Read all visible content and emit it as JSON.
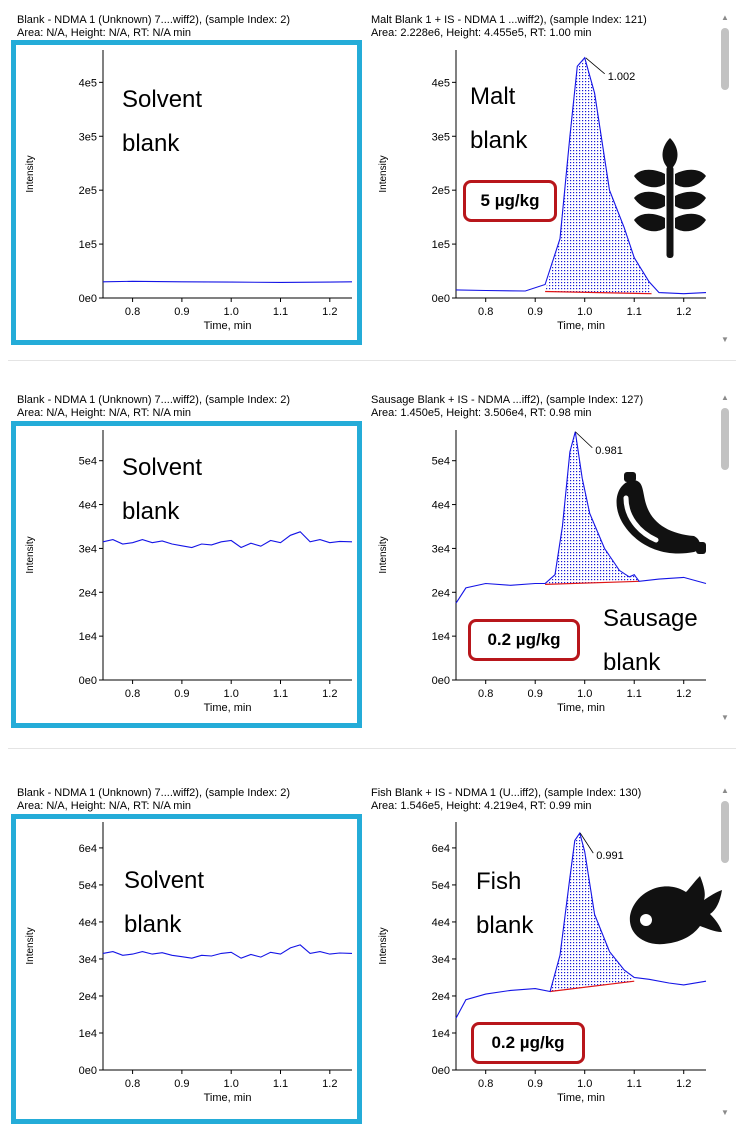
{
  "colors": {
    "trace": "#1414e6",
    "baseline": "#e01616",
    "frame": "#24acd8",
    "fill": "#1a1ad6",
    "badge": "#b8161b",
    "icon": "#111111"
  },
  "panels": [
    {
      "header1": "Blank - NDMA 1 (Unknown) 7....wiff2), (sample Index: 2)",
      "header2": "Area: N/A, Height: N/A, RT: N/A min",
      "annotation": "Solvent\nblank"
    },
    {
      "header1": "Malt Blank 1 + IS - NDMA 1 ...wiff2), (sample Index: 121)",
      "header2": "Area: 2.228e6, Height: 4.455e5, RT: 1.00 min",
      "annotation": "Malt\nblank",
      "concentration": "5 µg/kg",
      "icon": "wheat-icon"
    },
    {
      "header1": "Blank - NDMA 1 (Unknown) 7....wiff2), (sample Index: 2)",
      "header2": "Area: N/A, Height: N/A, RT: N/A min",
      "annotation": "Solvent\nblank"
    },
    {
      "header1": "Sausage Blank + IS - NDMA ...iff2), (sample Index: 127)",
      "header2": "Area: 1.450e5, Height: 3.506e4, RT: 0.98 min",
      "annotation": "Sausage\nblank",
      "concentration": "0.2 µg/kg",
      "icon": "sausage-icon"
    },
    {
      "header1": "Blank - NDMA 1 (Unknown) 7....wiff2), (sample Index: 2)",
      "header2": "Area: N/A, Height: N/A, RT: N/A min",
      "annotation": "Solvent\nblank"
    },
    {
      "header1": "Fish Blank + IS - NDMA 1 (U...iff2), (sample Index: 130)",
      "header2": "Area: 1.546e5, Height: 4.219e4, RT: 0.99 min",
      "annotation": "Fish\nblank",
      "concentration": "0.2 µg/kg",
      "icon": "fish-icon"
    }
  ],
  "chart_data": [
    {
      "type": "line",
      "xlabel": "Time, min",
      "ylabel": "Intensity",
      "xlim": [
        0.74,
        1.245
      ],
      "ylim": [
        0,
        460000
      ],
      "xticks": [
        0.8,
        0.9,
        1.0,
        1.1,
        1.2
      ],
      "xtick_labels": [
        "0.8",
        "0.9",
        "1.0",
        "1.1",
        "1.2"
      ],
      "yticks": [
        0,
        100000,
        200000,
        300000,
        400000
      ],
      "ytick_labels": [
        "0e0",
        "1e5",
        "2e5",
        "3e5",
        "4e5"
      ],
      "series": [
        {
          "x": [
            0.74,
            0.8,
            0.9,
            1.0,
            1.1,
            1.2,
            1.245
          ],
          "y": [
            30000,
            31000,
            30000,
            29500,
            29000,
            29500,
            30000
          ]
        }
      ]
    },
    {
      "type": "area",
      "xlabel": "Time, min",
      "ylabel": "Intensity",
      "xlim": [
        0.74,
        1.245
      ],
      "ylim": [
        0,
        460000
      ],
      "xticks": [
        0.8,
        0.9,
        1.0,
        1.1,
        1.2
      ],
      "xtick_labels": [
        "0.8",
        "0.9",
        "1.0",
        "1.1",
        "1.2"
      ],
      "yticks": [
        0,
        100000,
        200000,
        300000,
        400000
      ],
      "ytick_labels": [
        "0e0",
        "1e5",
        "2e5",
        "3e5",
        "4e5"
      ],
      "series": [
        {
          "x": [
            0.74,
            0.8,
            0.88,
            0.92,
            0.95,
            0.97,
            0.985,
            1.0,
            1.02,
            1.05,
            1.08,
            1.1,
            1.13,
            1.15,
            1.2,
            1.245
          ],
          "y": [
            15000,
            14000,
            13000,
            25000,
            110000,
            300000,
            430000,
            445500,
            380000,
            200000,
            130000,
            75000,
            30000,
            10000,
            8000,
            10000
          ]
        }
      ],
      "peak": {
        "rt": 1.002,
        "label": "1.002",
        "height": 445500,
        "start": 0.92,
        "end": 1.135,
        "baseline": [
          12000,
          8000
        ]
      }
    },
    {
      "type": "line",
      "xlabel": "Time, min",
      "ylabel": "Intensity",
      "xlim": [
        0.74,
        1.245
      ],
      "ylim": [
        0,
        57000
      ],
      "xticks": [
        0.8,
        0.9,
        1.0,
        1.1,
        1.2
      ],
      "xtick_labels": [
        "0.8",
        "0.9",
        "1.0",
        "1.1",
        "1.2"
      ],
      "yticks": [
        0,
        10000,
        20000,
        30000,
        40000,
        50000
      ],
      "ytick_labels": [
        "0e0",
        "1e4",
        "2e4",
        "3e4",
        "4e4",
        "5e4"
      ],
      "series": [
        {
          "x": [
            0.74,
            0.76,
            0.78,
            0.8,
            0.82,
            0.84,
            0.86,
            0.88,
            0.9,
            0.92,
            0.94,
            0.96,
            0.98,
            1.0,
            1.02,
            1.04,
            1.06,
            1.08,
            1.1,
            1.12,
            1.14,
            1.16,
            1.18,
            1.2,
            1.22,
            1.245
          ],
          "y": [
            31500,
            32000,
            31000,
            31300,
            32000,
            31300,
            31700,
            31000,
            30600,
            30200,
            31000,
            30800,
            31500,
            31800,
            30200,
            31200,
            30500,
            31800,
            31300,
            33000,
            33800,
            31500,
            32000,
            31300,
            31600,
            31500
          ]
        }
      ]
    },
    {
      "type": "area",
      "xlabel": "Time, min",
      "ylabel": "Intensity",
      "xlim": [
        0.74,
        1.245
      ],
      "ylim": [
        0,
        57000
      ],
      "xticks": [
        0.8,
        0.9,
        1.0,
        1.1,
        1.2
      ],
      "xtick_labels": [
        "0.8",
        "0.9",
        "1.0",
        "1.1",
        "1.2"
      ],
      "yticks": [
        0,
        10000,
        20000,
        30000,
        40000,
        50000
      ],
      "ytick_labels": [
        "0e0",
        "1e4",
        "2e4",
        "3e4",
        "4e4",
        "5e4"
      ],
      "series": [
        {
          "x": [
            0.74,
            0.76,
            0.8,
            0.85,
            0.9,
            0.92,
            0.94,
            0.955,
            0.97,
            0.981,
            0.995,
            1.01,
            1.04,
            1.07,
            1.09,
            1.1,
            1.11,
            1.15,
            1.2,
            1.245
          ],
          "y": [
            17500,
            21000,
            22000,
            21600,
            22000,
            22000,
            24000,
            35000,
            52000,
            56600,
            46000,
            38000,
            30000,
            25000,
            23500,
            24000,
            22500,
            23000,
            23400,
            22000
          ]
        }
      ],
      "peak": {
        "rt": 0.981,
        "label": "0.981",
        "height": 56600,
        "start": 0.92,
        "end": 1.11,
        "baseline": [
          21800,
          22500
        ]
      }
    },
    {
      "type": "line",
      "xlabel": "Time, min",
      "ylabel": "Intensity",
      "xlim": [
        0.74,
        1.245
      ],
      "ylim": [
        0,
        67000
      ],
      "xticks": [
        0.8,
        0.9,
        1.0,
        1.1,
        1.2
      ],
      "xtick_labels": [
        "0.8",
        "0.9",
        "1.0",
        "1.1",
        "1.2"
      ],
      "yticks": [
        0,
        10000,
        20000,
        30000,
        40000,
        50000,
        60000
      ],
      "ytick_labels": [
        "0e0",
        "1e4",
        "2e4",
        "3e4",
        "4e4",
        "5e4",
        "6e4"
      ],
      "series": [
        {
          "x": [
            0.74,
            0.76,
            0.78,
            0.8,
            0.82,
            0.84,
            0.86,
            0.88,
            0.9,
            0.92,
            0.94,
            0.96,
            0.98,
            1.0,
            1.02,
            1.04,
            1.06,
            1.08,
            1.1,
            1.12,
            1.14,
            1.16,
            1.18,
            1.2,
            1.22,
            1.245
          ],
          "y": [
            31500,
            32000,
            31000,
            31300,
            32000,
            31300,
            31700,
            31000,
            30600,
            30200,
            31000,
            30800,
            31500,
            31800,
            30200,
            31200,
            30500,
            31800,
            31300,
            33000,
            33800,
            31500,
            32000,
            31300,
            31600,
            31500
          ]
        }
      ]
    },
    {
      "type": "area",
      "xlabel": "Time, min",
      "ylabel": "Intensity",
      "xlim": [
        0.74,
        1.245
      ],
      "ylim": [
        0,
        67000
      ],
      "xticks": [
        0.8,
        0.9,
        1.0,
        1.1,
        1.2
      ],
      "xtick_labels": [
        "0.8",
        "0.9",
        "1.0",
        "1.1",
        "1.2"
      ],
      "yticks": [
        0,
        10000,
        20000,
        30000,
        40000,
        50000,
        60000
      ],
      "ytick_labels": [
        "0e0",
        "1e4",
        "2e4",
        "3e4",
        "4e4",
        "5e4",
        "6e4"
      ],
      "series": [
        {
          "x": [
            0.74,
            0.76,
            0.8,
            0.85,
            0.9,
            0.93,
            0.95,
            0.97,
            0.98,
            0.99,
            1.0,
            1.02,
            1.05,
            1.08,
            1.1,
            1.13,
            1.17,
            1.2,
            1.245
          ],
          "y": [
            14000,
            19000,
            20500,
            21500,
            22000,
            21200,
            31000,
            52000,
            62000,
            64000,
            59000,
            42000,
            32000,
            27000,
            25000,
            24500,
            23500,
            23000,
            24000
          ]
        }
      ],
      "peak": {
        "rt": 0.991,
        "label": "0.991",
        "height": 64000,
        "start": 0.93,
        "end": 1.1,
        "baseline": [
          21200,
          24000
        ]
      }
    }
  ]
}
